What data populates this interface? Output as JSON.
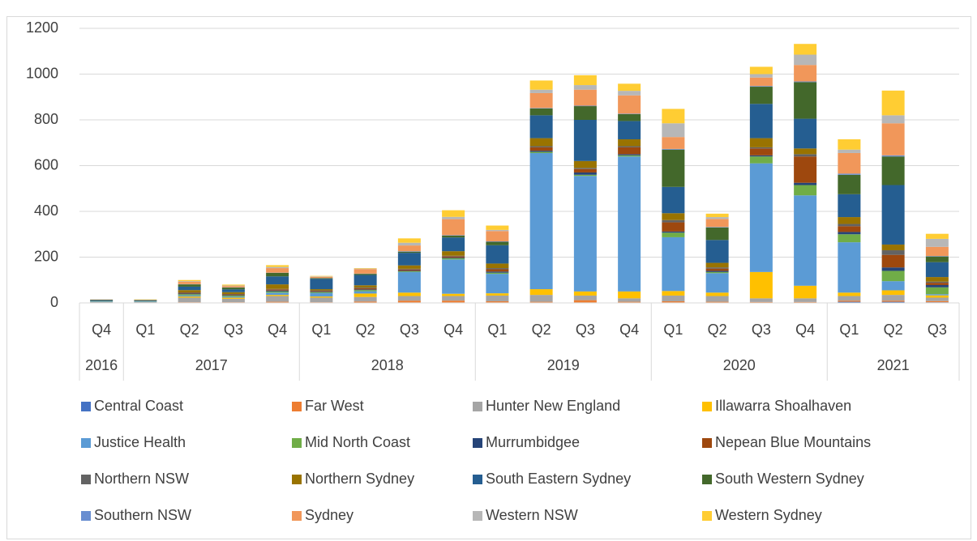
{
  "chart_data": {
    "type": "stacked-bar",
    "categories": [
      "Q4",
      "Q1",
      "Q2",
      "Q3",
      "Q4",
      "Q1",
      "Q2",
      "Q3",
      "Q4",
      "Q1",
      "Q2",
      "Q3",
      "Q4",
      "Q1",
      "Q2",
      "Q3",
      "Q4",
      "Q1",
      "Q2",
      "Q3"
    ],
    "year_groups": [
      {
        "label": "2016",
        "count": 1
      },
      {
        "label": "2017",
        "count": 4
      },
      {
        "label": "2018",
        "count": 4
      },
      {
        "label": "2019",
        "count": 4
      },
      {
        "label": "2020",
        "count": 4
      },
      {
        "label": "2021",
        "count": 3
      }
    ],
    "ylim": [
      0,
      1200
    ],
    "yticks": [
      0,
      200,
      400,
      600,
      800,
      1000,
      1200
    ],
    "grid": true,
    "series": [
      {
        "name": "Central Coast",
        "color": "#4472c4",
        "values": [
          0,
          0,
          1,
          1,
          2,
          1,
          1,
          2,
          2,
          2,
          2,
          2,
          2,
          2,
          2,
          2,
          2,
          5,
          5,
          3
        ]
      },
      {
        "name": "Far West",
        "color": "#ed7d31",
        "values": [
          0,
          0,
          2,
          2,
          3,
          2,
          5,
          8,
          8,
          5,
          3,
          10,
          3,
          5,
          3,
          2,
          2,
          5,
          5,
          5
        ]
      },
      {
        "name": "Hunter New England",
        "color": "#a5a5a5",
        "values": [
          4,
          4,
          20,
          15,
          25,
          20,
          20,
          20,
          20,
          25,
          30,
          20,
          15,
          25,
          25,
          16,
          16,
          20,
          25,
          15
        ]
      },
      {
        "name": "Illawarra Shoalhaven",
        "color": "#ffc000",
        "values": [
          0,
          0,
          5,
          5,
          5,
          5,
          15,
          15,
          10,
          10,
          25,
          18,
          30,
          20,
          15,
          115,
          55,
          15,
          20,
          10
        ]
      },
      {
        "name": "Justice Health",
        "color": "#5b9bd5",
        "values": [
          2,
          2,
          5,
          5,
          10,
          15,
          10,
          90,
          150,
          85,
          595,
          505,
          590,
          235,
          85,
          475,
          395,
          220,
          40,
          5
        ]
      },
      {
        "name": "Mid North Coast",
        "color": "#70ad47",
        "values": [
          1,
          1,
          5,
          4,
          5,
          4,
          5,
          3,
          5,
          5,
          5,
          5,
          5,
          20,
          5,
          30,
          45,
          35,
          45,
          30
        ]
      },
      {
        "name": "Murrumbidgee",
        "color": "#264478",
        "values": [
          0,
          0,
          3,
          2,
          4,
          3,
          3,
          3,
          3,
          5,
          5,
          10,
          5,
          5,
          5,
          5,
          10,
          10,
          15,
          10
        ]
      },
      {
        "name": "Nepean Blue Mountains",
        "color": "#9e480e",
        "values": [
          0,
          0,
          3,
          3,
          5,
          3,
          5,
          5,
          5,
          10,
          15,
          15,
          30,
          40,
          10,
          30,
          115,
          25,
          55,
          10
        ]
      },
      {
        "name": "Northern NSW",
        "color": "#636363",
        "values": [
          0,
          0,
          2,
          2,
          2,
          2,
          3,
          3,
          3,
          5,
          5,
          5,
          5,
          10,
          5,
          5,
          10,
          10,
          20,
          5
        ]
      },
      {
        "name": "Northern Sydney",
        "color": "#997300",
        "values": [
          1,
          1,
          10,
          8,
          20,
          5,
          10,
          15,
          20,
          20,
          35,
          30,
          30,
          30,
          20,
          40,
          25,
          30,
          25,
          20
        ]
      },
      {
        "name": "South Eastern Sydney",
        "color": "#255e91",
        "values": [
          4,
          3,
          15,
          12,
          35,
          45,
          45,
          55,
          60,
          80,
          100,
          180,
          80,
          115,
          100,
          150,
          130,
          100,
          260,
          65
        ]
      },
      {
        "name": "South Western Sydney",
        "color": "#43682b",
        "values": [
          2,
          2,
          10,
          8,
          15,
          3,
          5,
          5,
          8,
          15,
          30,
          60,
          30,
          163,
          55,
          75,
          160,
          85,
          125,
          25
        ]
      },
      {
        "name": "Southern NSW",
        "color": "#698ed0",
        "values": [
          0,
          0,
          1,
          1,
          1,
          1,
          1,
          2,
          2,
          2,
          2,
          2,
          2,
          3,
          2,
          3,
          3,
          5,
          5,
          2
        ]
      },
      {
        "name": "Sydney",
        "color": "#f1975a",
        "values": [
          1,
          1,
          10,
          6,
          20,
          5,
          20,
          25,
          70,
          45,
          65,
          70,
          80,
          52,
          35,
          37,
          72,
          90,
          140,
          40
        ]
      },
      {
        "name": "Western NSW",
        "color": "#b7b7b7",
        "values": [
          0,
          0,
          3,
          2,
          5,
          2,
          2,
          12,
          10,
          5,
          15,
          20,
          20,
          60,
          8,
          15,
          45,
          15,
          35,
          35
        ]
      },
      {
        "name": "Western Sydney",
        "color": "#ffcd33",
        "values": [
          0,
          1,
          5,
          4,
          8,
          2,
          2,
          19,
          29,
          19,
          40,
          43,
          31,
          63,
          15,
          32,
          47,
          45,
          108,
          22
        ]
      }
    ]
  }
}
